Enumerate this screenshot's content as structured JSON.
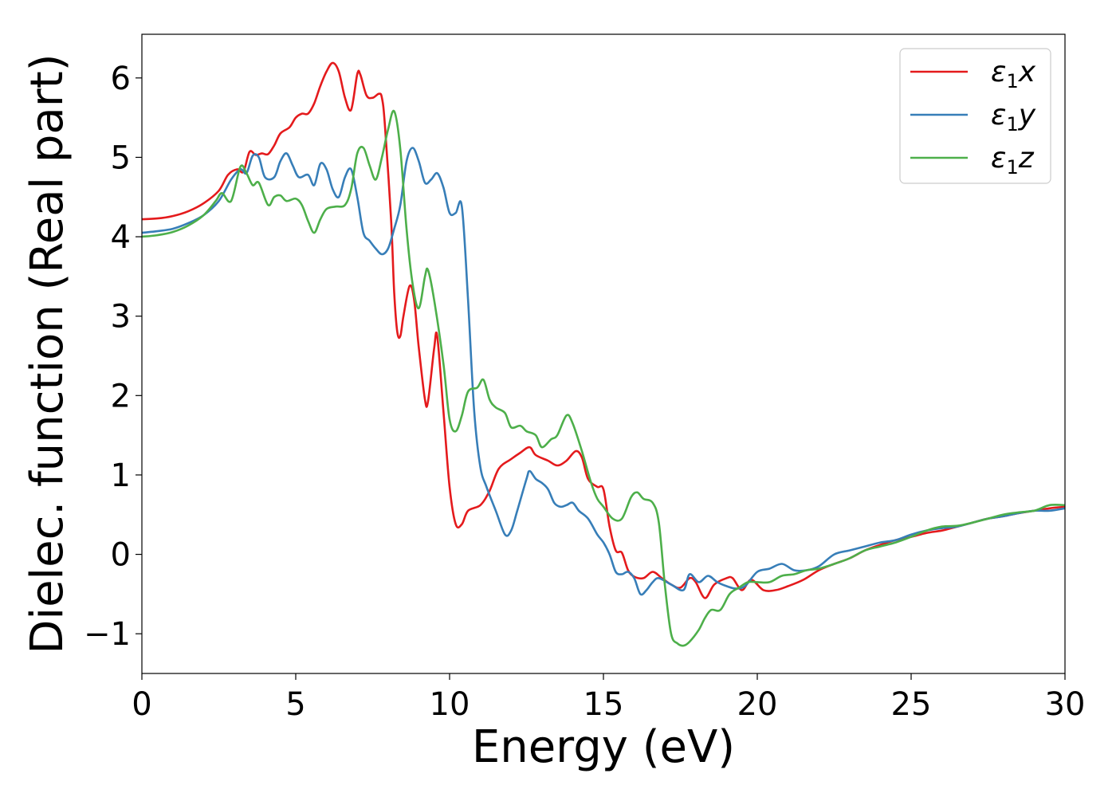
{
  "chart_data": {
    "type": "line",
    "xlabel": "Energy (eV)",
    "ylabel": "Dielec. function (Real part)",
    "xlim": [
      0,
      30
    ],
    "ylim": [
      -1.5,
      6.55
    ],
    "xticks": [
      0,
      5,
      10,
      15,
      20,
      25,
      30
    ],
    "yticks": [
      -1,
      0,
      1,
      2,
      3,
      4,
      5,
      6
    ],
    "xtick_labels": [
      "0",
      "5",
      "10",
      "15",
      "20",
      "25",
      "30"
    ],
    "ytick_labels": [
      "−1",
      "0",
      "1",
      "2",
      "3",
      "4",
      "5",
      "6"
    ],
    "grid": false,
    "legend_position": "top-right",
    "series": [
      {
        "name": "ε₁x",
        "legend_base": "ε",
        "legend_sub": "1",
        "legend_var": "x",
        "color": "#e41a1c",
        "points": [
          [
            0,
            4.22
          ],
          [
            0.5,
            4.23
          ],
          [
            1,
            4.26
          ],
          [
            1.5,
            4.32
          ],
          [
            2,
            4.42
          ],
          [
            2.5,
            4.58
          ],
          [
            2.8,
            4.78
          ],
          [
            3.1,
            4.85
          ],
          [
            3.3,
            4.82
          ],
          [
            3.5,
            5.07
          ],
          [
            3.7,
            5.03
          ],
          [
            3.9,
            5.05
          ],
          [
            4.1,
            5.04
          ],
          [
            4.3,
            5.15
          ],
          [
            4.5,
            5.3
          ],
          [
            4.8,
            5.38
          ],
          [
            5,
            5.5
          ],
          [
            5.2,
            5.55
          ],
          [
            5.4,
            5.55
          ],
          [
            5.6,
            5.68
          ],
          [
            5.8,
            5.9
          ],
          [
            6,
            6.08
          ],
          [
            6.2,
            6.19
          ],
          [
            6.4,
            6.08
          ],
          [
            6.6,
            5.75
          ],
          [
            6.8,
            5.6
          ],
          [
            7,
            6.05
          ],
          [
            7.1,
            6.04
          ],
          [
            7.3,
            5.78
          ],
          [
            7.5,
            5.75
          ],
          [
            7.7,
            5.8
          ],
          [
            7.8,
            5.75
          ],
          [
            7.9,
            5.4
          ],
          [
            8.1,
            4.2
          ],
          [
            8.2,
            3.3
          ],
          [
            8.3,
            2.8
          ],
          [
            8.4,
            2.75
          ],
          [
            8.5,
            3.0
          ],
          [
            8.7,
            3.38
          ],
          [
            8.85,
            3.2
          ],
          [
            9,
            2.6
          ],
          [
            9.2,
            1.95
          ],
          [
            9.3,
            1.93
          ],
          [
            9.5,
            2.6
          ],
          [
            9.6,
            2.74
          ],
          [
            9.8,
            1.8
          ],
          [
            10,
            0.85
          ],
          [
            10.2,
            0.38
          ],
          [
            10.4,
            0.38
          ],
          [
            10.6,
            0.55
          ],
          [
            11,
            0.62
          ],
          [
            11.3,
            0.8
          ],
          [
            11.6,
            1.08
          ],
          [
            12,
            1.2
          ],
          [
            12.3,
            1.28
          ],
          [
            12.6,
            1.35
          ],
          [
            12.8,
            1.25
          ],
          [
            13.2,
            1.18
          ],
          [
            13.5,
            1.12
          ],
          [
            13.8,
            1.18
          ],
          [
            14.1,
            1.3
          ],
          [
            14.3,
            1.22
          ],
          [
            14.5,
            0.95
          ],
          [
            14.8,
            0.85
          ],
          [
            15,
            0.82
          ],
          [
            15.2,
            0.35
          ],
          [
            15.4,
            0.05
          ],
          [
            15.6,
            0.02
          ],
          [
            15.8,
            -0.2
          ],
          [
            16,
            -0.28
          ],
          [
            16.3,
            -0.3
          ],
          [
            16.6,
            -0.22
          ],
          [
            16.9,
            -0.3
          ],
          [
            17.2,
            -0.38
          ],
          [
            17.5,
            -0.42
          ],
          [
            17.8,
            -0.3
          ],
          [
            18,
            -0.35
          ],
          [
            18.3,
            -0.55
          ],
          [
            18.6,
            -0.38
          ],
          [
            19,
            -0.3
          ],
          [
            19.2,
            -0.3
          ],
          [
            19.5,
            -0.45
          ],
          [
            19.8,
            -0.32
          ],
          [
            20.2,
            -0.45
          ],
          [
            20.6,
            -0.45
          ],
          [
            21,
            -0.4
          ],
          [
            21.5,
            -0.32
          ],
          [
            22,
            -0.2
          ],
          [
            22.5,
            -0.12
          ],
          [
            23,
            -0.05
          ],
          [
            23.5,
            0.05
          ],
          [
            24,
            0.12
          ],
          [
            24.5,
            0.18
          ],
          [
            25,
            0.22
          ],
          [
            25.5,
            0.27
          ],
          [
            26,
            0.3
          ],
          [
            26.5,
            0.35
          ],
          [
            27,
            0.4
          ],
          [
            27.5,
            0.45
          ],
          [
            28,
            0.48
          ],
          [
            28.5,
            0.52
          ],
          [
            29,
            0.55
          ],
          [
            29.5,
            0.58
          ],
          [
            30,
            0.6
          ]
        ]
      },
      {
        "name": "ε₁y",
        "legend_base": "ε",
        "legend_sub": "1",
        "legend_var": "y",
        "color": "#377eb8",
        "points": [
          [
            0,
            4.05
          ],
          [
            0.5,
            4.07
          ],
          [
            1,
            4.1
          ],
          [
            1.5,
            4.17
          ],
          [
            2,
            4.27
          ],
          [
            2.5,
            4.45
          ],
          [
            2.9,
            4.72
          ],
          [
            3.2,
            4.85
          ],
          [
            3.4,
            4.8
          ],
          [
            3.6,
            5.02
          ],
          [
            3.8,
            5.0
          ],
          [
            4,
            4.75
          ],
          [
            4.3,
            4.75
          ],
          [
            4.5,
            4.95
          ],
          [
            4.7,
            5.05
          ],
          [
            4.9,
            4.9
          ],
          [
            5.1,
            4.75
          ],
          [
            5.4,
            4.78
          ],
          [
            5.6,
            4.65
          ],
          [
            5.8,
            4.92
          ],
          [
            6,
            4.85
          ],
          [
            6.2,
            4.6
          ],
          [
            6.4,
            4.5
          ],
          [
            6.6,
            4.75
          ],
          [
            6.8,
            4.85
          ],
          [
            7,
            4.5
          ],
          [
            7.2,
            4.05
          ],
          [
            7.4,
            3.95
          ],
          [
            7.6,
            3.85
          ],
          [
            7.8,
            3.78
          ],
          [
            8,
            3.85
          ],
          [
            8.2,
            4.1
          ],
          [
            8.4,
            4.4
          ],
          [
            8.6,
            4.95
          ],
          [
            8.8,
            5.12
          ],
          [
            9,
            4.95
          ],
          [
            9.2,
            4.68
          ],
          [
            9.4,
            4.72
          ],
          [
            9.6,
            4.8
          ],
          [
            9.8,
            4.62
          ],
          [
            10,
            4.3
          ],
          [
            10.2,
            4.3
          ],
          [
            10.4,
            4.38
          ],
          [
            10.6,
            3.2
          ],
          [
            10.8,
            1.8
          ],
          [
            11,
            1.1
          ],
          [
            11.2,
            0.85
          ],
          [
            11.5,
            0.55
          ],
          [
            11.8,
            0.25
          ],
          [
            12,
            0.3
          ],
          [
            12.2,
            0.55
          ],
          [
            12.5,
            0.95
          ],
          [
            12.6,
            1.05
          ],
          [
            12.8,
            0.95
          ],
          [
            13,
            0.9
          ],
          [
            13.2,
            0.82
          ],
          [
            13.4,
            0.65
          ],
          [
            13.6,
            0.6
          ],
          [
            13.8,
            0.62
          ],
          [
            14,
            0.65
          ],
          [
            14.2,
            0.55
          ],
          [
            14.5,
            0.45
          ],
          [
            14.8,
            0.25
          ],
          [
            15,
            0.15
          ],
          [
            15.2,
            0.0
          ],
          [
            15.4,
            -0.22
          ],
          [
            15.6,
            -0.25
          ],
          [
            15.8,
            -0.22
          ],
          [
            16,
            -0.3
          ],
          [
            16.2,
            -0.5
          ],
          [
            16.4,
            -0.45
          ],
          [
            16.6,
            -0.35
          ],
          [
            16.8,
            -0.3
          ],
          [
            17.2,
            -0.38
          ],
          [
            17.6,
            -0.45
          ],
          [
            17.8,
            -0.25
          ],
          [
            18.1,
            -0.35
          ],
          [
            18.4,
            -0.27
          ],
          [
            18.7,
            -0.35
          ],
          [
            19,
            -0.4
          ],
          [
            19.3,
            -0.43
          ],
          [
            19.6,
            -0.4
          ],
          [
            20,
            -0.22
          ],
          [
            20.4,
            -0.18
          ],
          [
            20.8,
            -0.12
          ],
          [
            21.2,
            -0.2
          ],
          [
            21.6,
            -0.2
          ],
          [
            22,
            -0.15
          ],
          [
            22.5,
            0.0
          ],
          [
            23,
            0.05
          ],
          [
            23.5,
            0.1
          ],
          [
            24,
            0.15
          ],
          [
            24.5,
            0.18
          ],
          [
            25,
            0.25
          ],
          [
            25.5,
            0.3
          ],
          [
            26,
            0.33
          ],
          [
            26.5,
            0.35
          ],
          [
            27,
            0.4
          ],
          [
            27.5,
            0.45
          ],
          [
            28,
            0.48
          ],
          [
            28.5,
            0.52
          ],
          [
            29,
            0.55
          ],
          [
            29.5,
            0.55
          ],
          [
            30,
            0.58
          ]
        ]
      },
      {
        "name": "ε₁z",
        "legend_base": "ε",
        "legend_sub": "1",
        "legend_var": "z",
        "color": "#4daf4a",
        "points": [
          [
            0,
            4.0
          ],
          [
            0.5,
            4.02
          ],
          [
            1,
            4.06
          ],
          [
            1.5,
            4.14
          ],
          [
            2,
            4.27
          ],
          [
            2.4,
            4.45
          ],
          [
            2.6,
            4.55
          ],
          [
            2.9,
            4.45
          ],
          [
            3.2,
            4.88
          ],
          [
            3.4,
            4.8
          ],
          [
            3.6,
            4.65
          ],
          [
            3.8,
            4.68
          ],
          [
            4.1,
            4.4
          ],
          [
            4.3,
            4.5
          ],
          [
            4.5,
            4.52
          ],
          [
            4.7,
            4.45
          ],
          [
            5,
            4.48
          ],
          [
            5.2,
            4.4
          ],
          [
            5.4,
            4.2
          ],
          [
            5.6,
            4.05
          ],
          [
            5.8,
            4.22
          ],
          [
            6,
            4.35
          ],
          [
            6.3,
            4.38
          ],
          [
            6.6,
            4.4
          ],
          [
            6.8,
            4.6
          ],
          [
            7,
            5.05
          ],
          [
            7.2,
            5.12
          ],
          [
            7.4,
            4.9
          ],
          [
            7.6,
            4.72
          ],
          [
            7.8,
            5.0
          ],
          [
            8,
            5.35
          ],
          [
            8.2,
            5.58
          ],
          [
            8.4,
            5.1
          ],
          [
            8.6,
            4.1
          ],
          [
            8.8,
            3.4
          ],
          [
            9,
            3.1
          ],
          [
            9.2,
            3.5
          ],
          [
            9.3,
            3.58
          ],
          [
            9.5,
            3.2
          ],
          [
            9.8,
            2.4
          ],
          [
            10,
            1.7
          ],
          [
            10.2,
            1.55
          ],
          [
            10.4,
            1.75
          ],
          [
            10.6,
            2.05
          ],
          [
            10.9,
            2.1
          ],
          [
            11.1,
            2.2
          ],
          [
            11.3,
            1.95
          ],
          [
            11.5,
            1.85
          ],
          [
            11.8,
            1.78
          ],
          [
            12,
            1.6
          ],
          [
            12.3,
            1.62
          ],
          [
            12.5,
            1.55
          ],
          [
            12.8,
            1.5
          ],
          [
            13,
            1.35
          ],
          [
            13.3,
            1.45
          ],
          [
            13.5,
            1.5
          ],
          [
            13.8,
            1.75
          ],
          [
            14,
            1.65
          ],
          [
            14.3,
            1.3
          ],
          [
            14.6,
            0.9
          ],
          [
            14.8,
            0.7
          ],
          [
            15,
            0.6
          ],
          [
            15.3,
            0.45
          ],
          [
            15.6,
            0.45
          ],
          [
            15.9,
            0.72
          ],
          [
            16.1,
            0.78
          ],
          [
            16.3,
            0.7
          ],
          [
            16.6,
            0.65
          ],
          [
            16.8,
            0.4
          ],
          [
            17,
            -0.4
          ],
          [
            17.2,
            -1.0
          ],
          [
            17.4,
            -1.12
          ],
          [
            17.6,
            -1.15
          ],
          [
            17.8,
            -1.1
          ],
          [
            18.1,
            -0.95
          ],
          [
            18.3,
            -0.8
          ],
          [
            18.5,
            -0.7
          ],
          [
            18.8,
            -0.7
          ],
          [
            19.1,
            -0.5
          ],
          [
            19.4,
            -0.42
          ],
          [
            19.7,
            -0.35
          ],
          [
            20,
            -0.35
          ],
          [
            20.4,
            -0.35
          ],
          [
            20.8,
            -0.27
          ],
          [
            21.2,
            -0.25
          ],
          [
            21.6,
            -0.2
          ],
          [
            22,
            -0.18
          ],
          [
            22.5,
            -0.12
          ],
          [
            23,
            -0.05
          ],
          [
            23.5,
            0.05
          ],
          [
            24,
            0.1
          ],
          [
            24.5,
            0.15
          ],
          [
            25,
            0.22
          ],
          [
            25.5,
            0.3
          ],
          [
            26,
            0.35
          ],
          [
            26.5,
            0.36
          ],
          [
            27,
            0.4
          ],
          [
            27.5,
            0.45
          ],
          [
            28,
            0.5
          ],
          [
            28.5,
            0.53
          ],
          [
            29,
            0.55
          ],
          [
            29.5,
            0.62
          ],
          [
            30,
            0.62
          ]
        ]
      }
    ]
  }
}
